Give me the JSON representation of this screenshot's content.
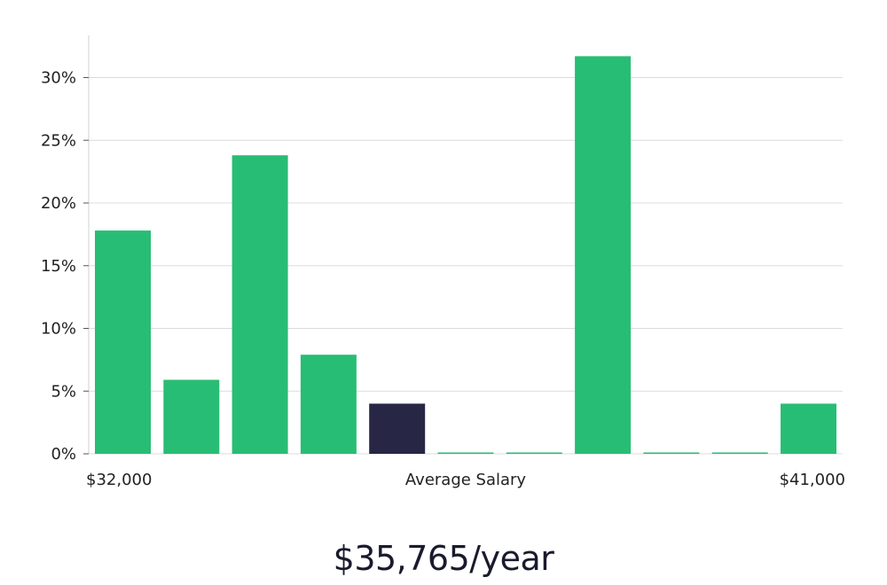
{
  "colors": {
    "bar": "#28bd74",
    "highlight": "#272645",
    "grid": "#dcdcdc",
    "axis": "#d0d0d0",
    "text": "#222222"
  },
  "chart_data": {
    "type": "bar",
    "title": "",
    "xlabel": "Average Salary",
    "ylabel": "",
    "x_start_label": "$32,000",
    "x_end_label": "$41,000",
    "ylim": [
      0,
      33
    ],
    "y_ticks": [
      0,
      5,
      10,
      15,
      20,
      25,
      30
    ],
    "y_tick_labels": [
      "0%",
      "5%",
      "10%",
      "15%",
      "20%",
      "25%",
      "30%"
    ],
    "grid": true,
    "values": [
      17.8,
      5.9,
      23.8,
      7.9,
      4.0,
      0,
      0,
      31.7,
      0,
      0,
      4.0
    ],
    "highlight_index": 4
  },
  "summary": {
    "salary": "$35,765/year"
  }
}
